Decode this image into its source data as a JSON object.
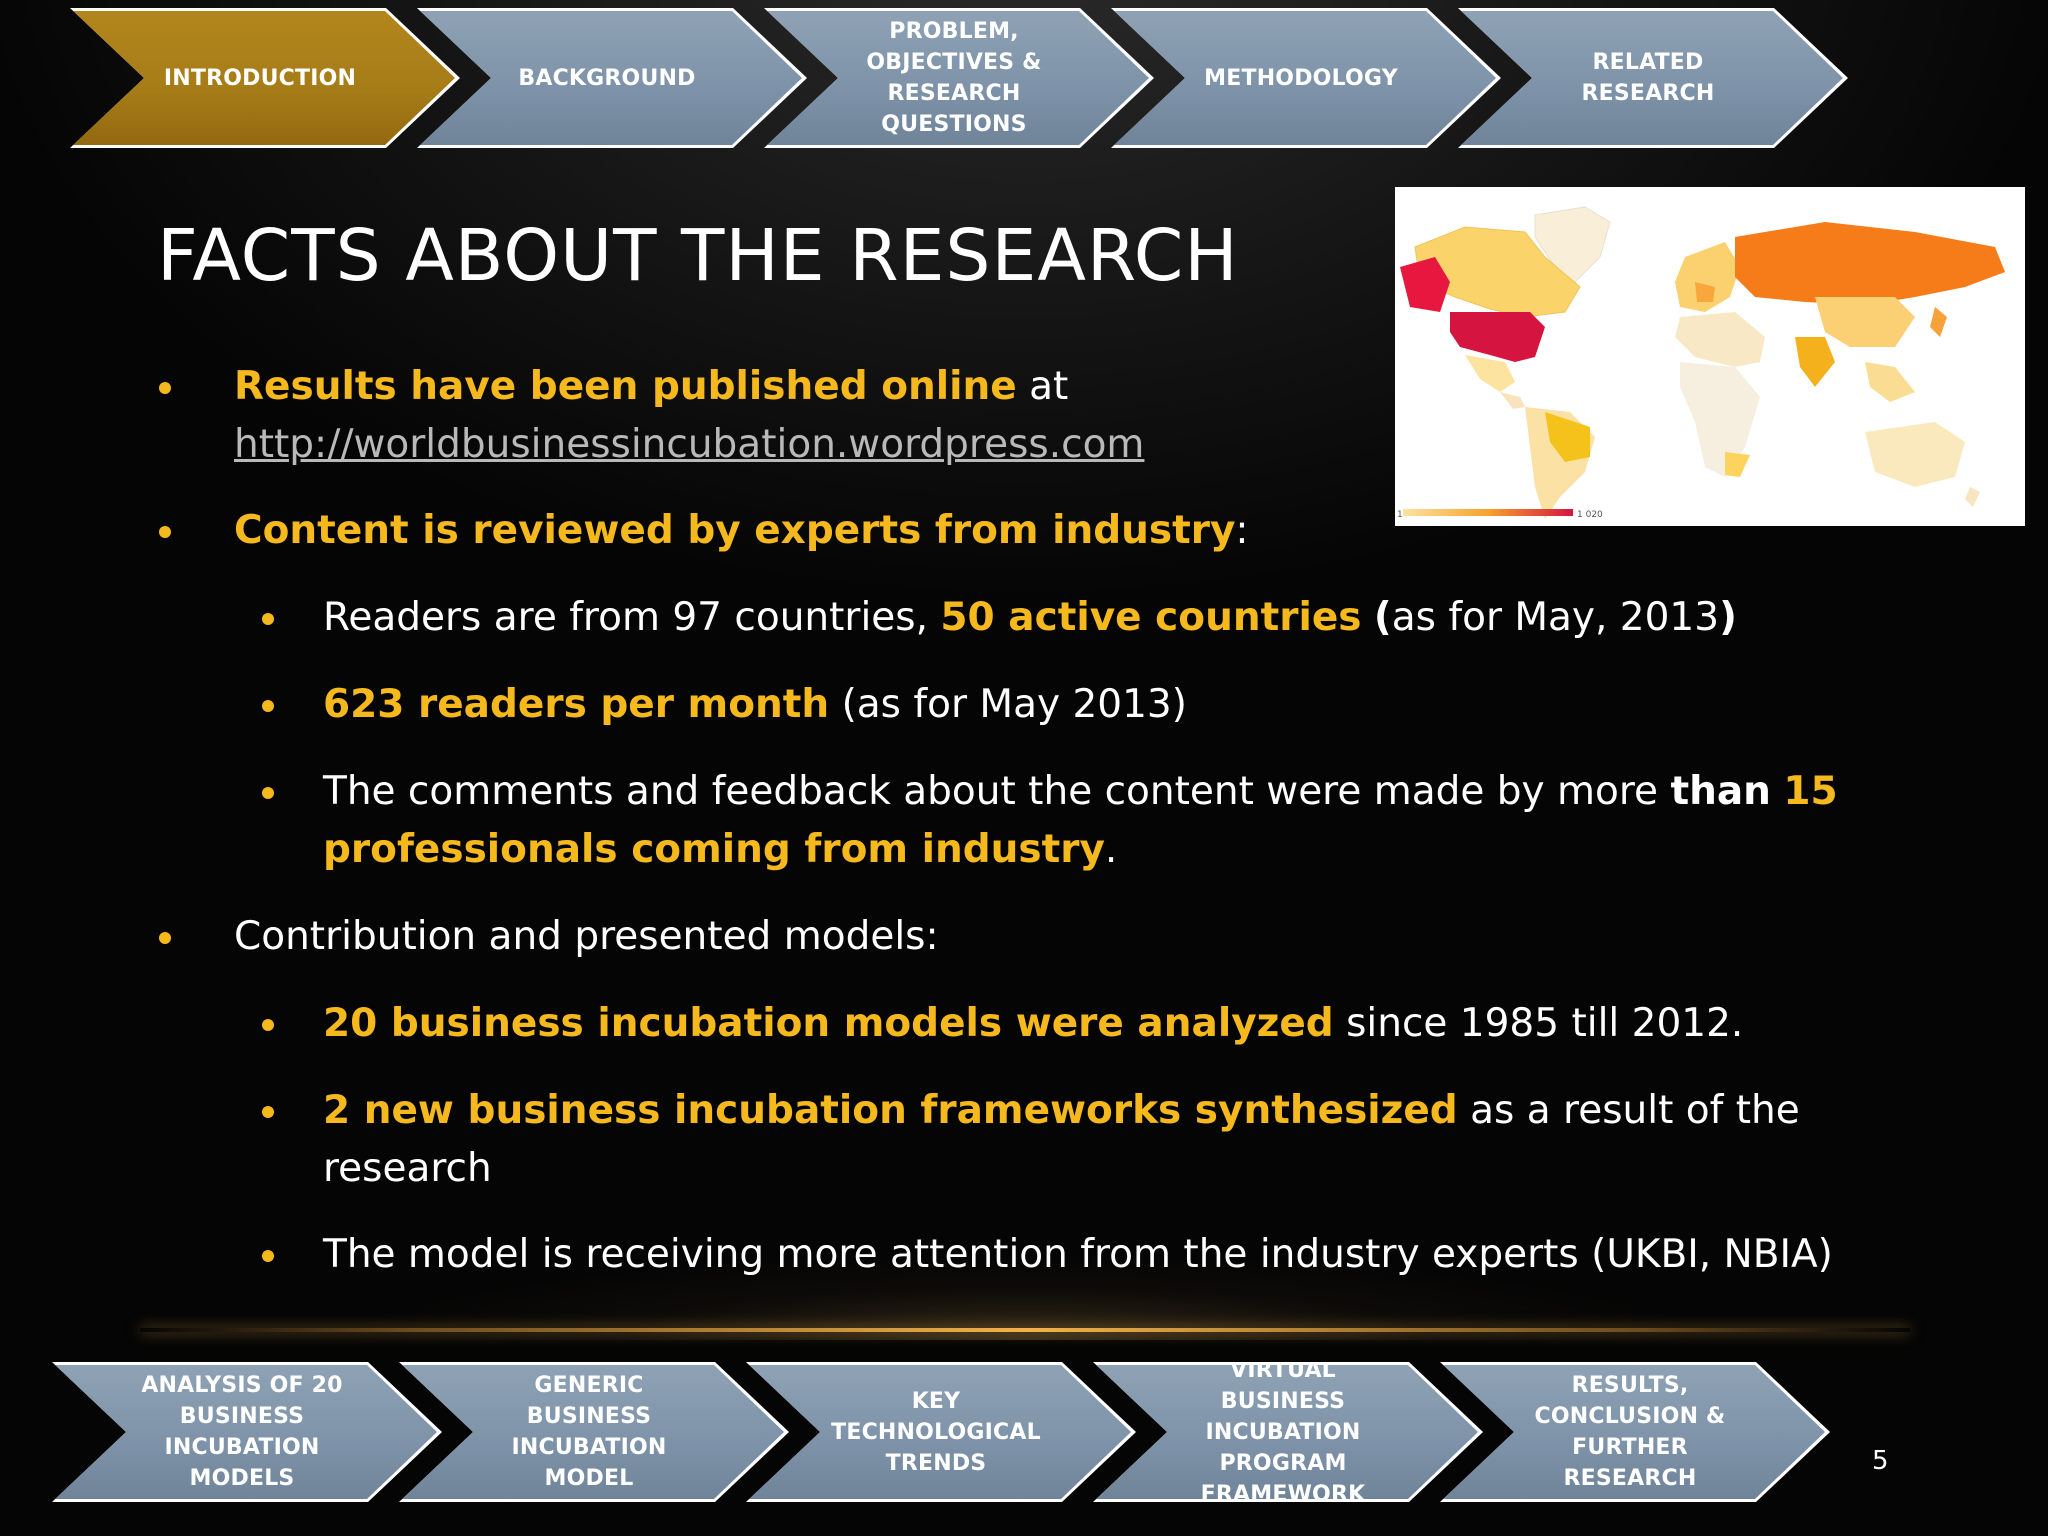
{
  "top_nav": [
    {
      "label": "INTRODUCTION",
      "active": true
    },
    {
      "label": "BACKGROUND",
      "active": false
    },
    {
      "label": "PROBLEM, OBJECTIVES & RESEARCH QUESTIONS",
      "active": false
    },
    {
      "label": "METHODOLOGY",
      "active": false
    },
    {
      "label": "RELATED RESEARCH",
      "active": false
    }
  ],
  "bottom_nav": [
    {
      "label": "ANALYSIS OF 20 BUSINESS INCUBATION MODELS"
    },
    {
      "label": "GENERIC BUSINESS INCUBATION MODEL"
    },
    {
      "label": "KEY TECHNOLOGICAL TRENDS"
    },
    {
      "label": "VIRTUAL BUSINESS INCUBATION PROGRAM FRAMEWORK"
    },
    {
      "label": "RESULTS, CONCLUSION & FURTHER RESEARCH"
    }
  ],
  "title": "FACTS ABOUT THE RESEARCH",
  "map": {
    "legend_min": "1",
    "legend_max": "1 020"
  },
  "bullets": {
    "b1": {
      "bold": "Results have been published online",
      "rest": " at",
      "link": "http://worldbusinessincubation.wordpress.com"
    },
    "b2": {
      "bold": "Content is reviewed by experts from industry",
      "rest": ":"
    },
    "b2a": {
      "pre": "Readers are from 97 countries, ",
      "bold": "50 active countries",
      "space": " ",
      "open": "(",
      "mid": "as for May, 2013",
      "close": ")"
    },
    "b2b": {
      "bold": "623 readers per month",
      "rest": " (as for May 2013)"
    },
    "b2c": {
      "pre": "The comments and feedback about the content were made by more ",
      "than": "than",
      "space": " ",
      "bold1": "15",
      "bold2": "professionals coming from industry",
      "rest": "."
    },
    "b3": {
      "text": "Contribution and presented models:"
    },
    "b3a": {
      "bold": "20 business incubation models were analyzed",
      "rest": " since 1985 till 2012."
    },
    "b3b": {
      "bold": "2 new business incubation frameworks synthesized",
      "rest": " as a result of the",
      "rest2": "research"
    },
    "b3c": {
      "text": "The model is receiving more attention from the industry experts (UKBI, NBIA)"
    }
  },
  "page_number": "5",
  "colors": {
    "accent": "#f5b91d",
    "nav_active": "#a67c18",
    "nav_inactive": "#7d92a8"
  }
}
